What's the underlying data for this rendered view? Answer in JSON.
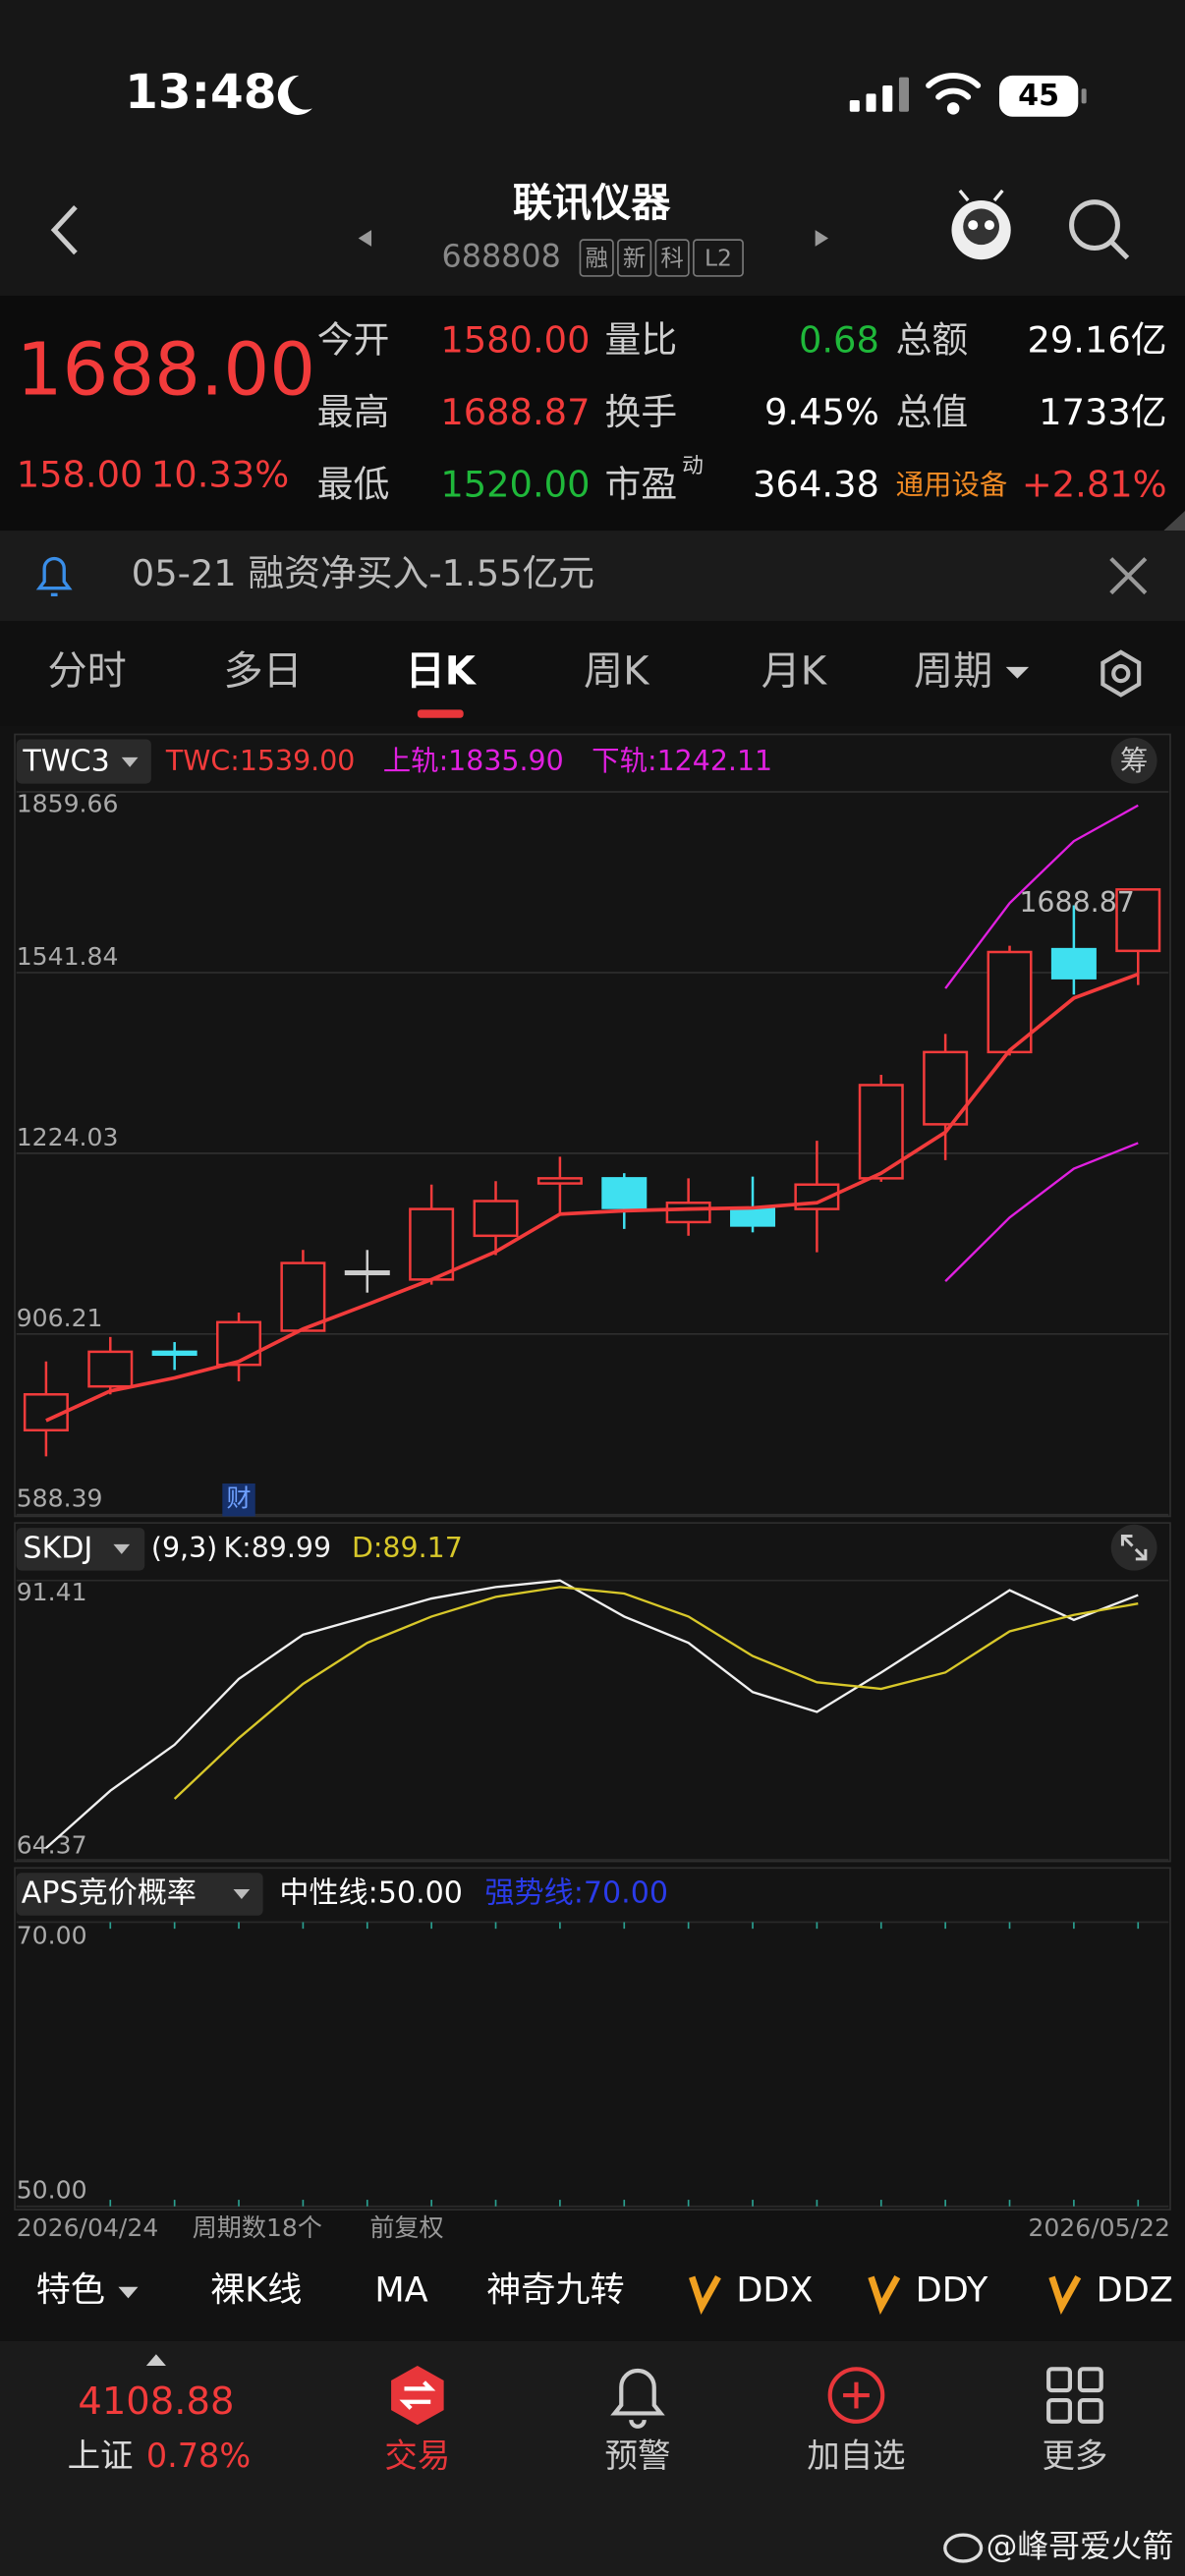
{
  "status_bar": {
    "time": "13:48",
    "battery": "45"
  },
  "header": {
    "title": "联讯仪器",
    "code": "688808",
    "badges": [
      "融",
      "新",
      "科",
      "L2"
    ]
  },
  "quote": {
    "price": "1688.00",
    "change": "158.00",
    "change_pct": "10.33%",
    "fields": [
      {
        "label": "今开",
        "value": "1580.00",
        "color": "#f23b3b"
      },
      {
        "label": "量比",
        "value": "0.68",
        "color": "#1fb83a"
      },
      {
        "label": "总额",
        "value": "29.16亿",
        "color": "#ffffff"
      },
      {
        "label": "最高",
        "value": "1688.87",
        "color": "#f23b3b"
      },
      {
        "label": "换手",
        "value": "9.45%",
        "color": "#ffffff"
      },
      {
        "label": "总值",
        "value": "1733亿",
        "color": "#ffffff"
      },
      {
        "label": "最低",
        "value": "1520.00",
        "color": "#1fb83a"
      },
      {
        "label": "市盈",
        "label_sup": "动",
        "value": "364.38",
        "color": "#ffffff"
      },
      {
        "label": "通用设备",
        "label_color": "#f08a24",
        "value": "+2.81%",
        "color": "#f23b3b"
      }
    ]
  },
  "notice": {
    "text": "05-21 融资净买入-1.55亿元"
  },
  "tabs": {
    "items": [
      "分时",
      "多日",
      "日K",
      "周K",
      "月K",
      "周期"
    ],
    "active": 2
  },
  "kline": {
    "type": "candlestick",
    "indicator": "TWC3",
    "chip_button": "筹",
    "ylim": [
      588.39,
      1859.66
    ],
    "yticks": [
      1859.66,
      1541.84,
      1224.03,
      906.21,
      588.39
    ],
    "up_color": "#f23b3b",
    "down_color": "#3fe0f0",
    "flat_color": "#cccccc",
    "candles": {
      "open": [
        737,
        814,
        875,
        852,
        912,
        1016,
        1002,
        1079,
        1171,
        1180,
        1103,
        1126,
        1126,
        1180,
        1275,
        1402,
        1583,
        1580
      ],
      "high": [
        858,
        901,
        892,
        944,
        1054,
        1054,
        1169,
        1175,
        1218,
        1189,
        1180,
        1183,
        1246,
        1362,
        1434,
        1589,
        1660,
        1688.87
      ],
      "low": [
        691,
        800,
        843,
        823,
        910,
        979,
        993,
        1045,
        1114,
        1091,
        1079,
        1085,
        1050,
        1174,
        1212,
        1396,
        1503,
        1520
      ],
      "close": [
        800,
        875,
        870,
        927,
        1031,
        1016,
        1126,
        1140,
        1180,
        1128,
        1137,
        1097,
        1169,
        1344,
        1402,
        1578,
        1532,
        1688
      ]
    },
    "series": [
      {
        "name": "TWC:1539.00",
        "color": "#f23b3b",
        "values": [
          754,
          806,
          829,
          858,
          915,
          958,
          1002,
          1051,
          1117,
          1123,
          1126,
          1128,
          1137,
          1189,
          1261,
          1405,
          1497,
          1539
        ]
      },
      {
        "name": "上轨:1835.90",
        "color": "#e020e0",
        "values": [
          null,
          null,
          null,
          null,
          null,
          null,
          null,
          null,
          null,
          null,
          null,
          null,
          null,
          null,
          1514,
          1664,
          1773,
          1835.9
        ]
      },
      {
        "name": "下轨:1242.11",
        "color": "#e020e0",
        "values": [
          null,
          null,
          null,
          null,
          null,
          null,
          null,
          null,
          null,
          null,
          null,
          null,
          null,
          null,
          999,
          1111,
          1197,
          1242.11
        ]
      }
    ],
    "high_label": 1688.87,
    "finance_marker": "财",
    "finance_marker_index": 3
  },
  "kdj": {
    "type": "line",
    "indicator": "SKDJ",
    "params": "(9,3)",
    "ylim": [
      64.37,
      91.41
    ],
    "yticks": [
      91.41,
      64.37
    ],
    "series": [
      {
        "name": "K:89.99",
        "color": "#f0f0f0",
        "values": [
          65.5,
          71.05,
          75.5,
          81.87,
          86.16,
          87.91,
          89.66,
          90.77,
          91.41,
          87.91,
          85.37,
          80.6,
          78.68,
          82.5,
          86.48,
          90.46,
          87.59,
          89.99
        ]
      },
      {
        "name": "D:89.17",
        "color": "#d8c82a",
        "values": [
          null,
          null,
          70.26,
          76.14,
          81.39,
          85.37,
          87.91,
          89.82,
          90.77,
          90.14,
          87.91,
          84.09,
          81.55,
          80.91,
          82.5,
          86.48,
          88.07,
          89.17
        ]
      }
    ]
  },
  "aps": {
    "indicator": "APS竞价概率",
    "ylim": [
      50,
      70
    ],
    "yticks": [
      {
        "value": 70,
        "label": "70.00"
      },
      {
        "value": 50,
        "label": "50.00"
      }
    ],
    "legend": [
      {
        "text": "中性线:50.00",
        "color": "#ffffff"
      },
      {
        "text": "强势线:70.00",
        "color": "#2a3be8"
      }
    ]
  },
  "footer_info": {
    "start": "2026/04/24",
    "count": "周期数18个",
    "adjust": "前复权",
    "end": "2026/05/22"
  },
  "toolbar": [
    "特色",
    "裸K线",
    "MA",
    "神奇九转",
    "DDX",
    "DDY",
    "DDZ"
  ],
  "bottom_nav": {
    "index_value": "4108.88",
    "index_name": "上证",
    "index_change": "0.78%",
    "items": [
      "交易",
      "预警",
      "加自选",
      "更多"
    ]
  },
  "watermark": "@峰哥爱火箭"
}
